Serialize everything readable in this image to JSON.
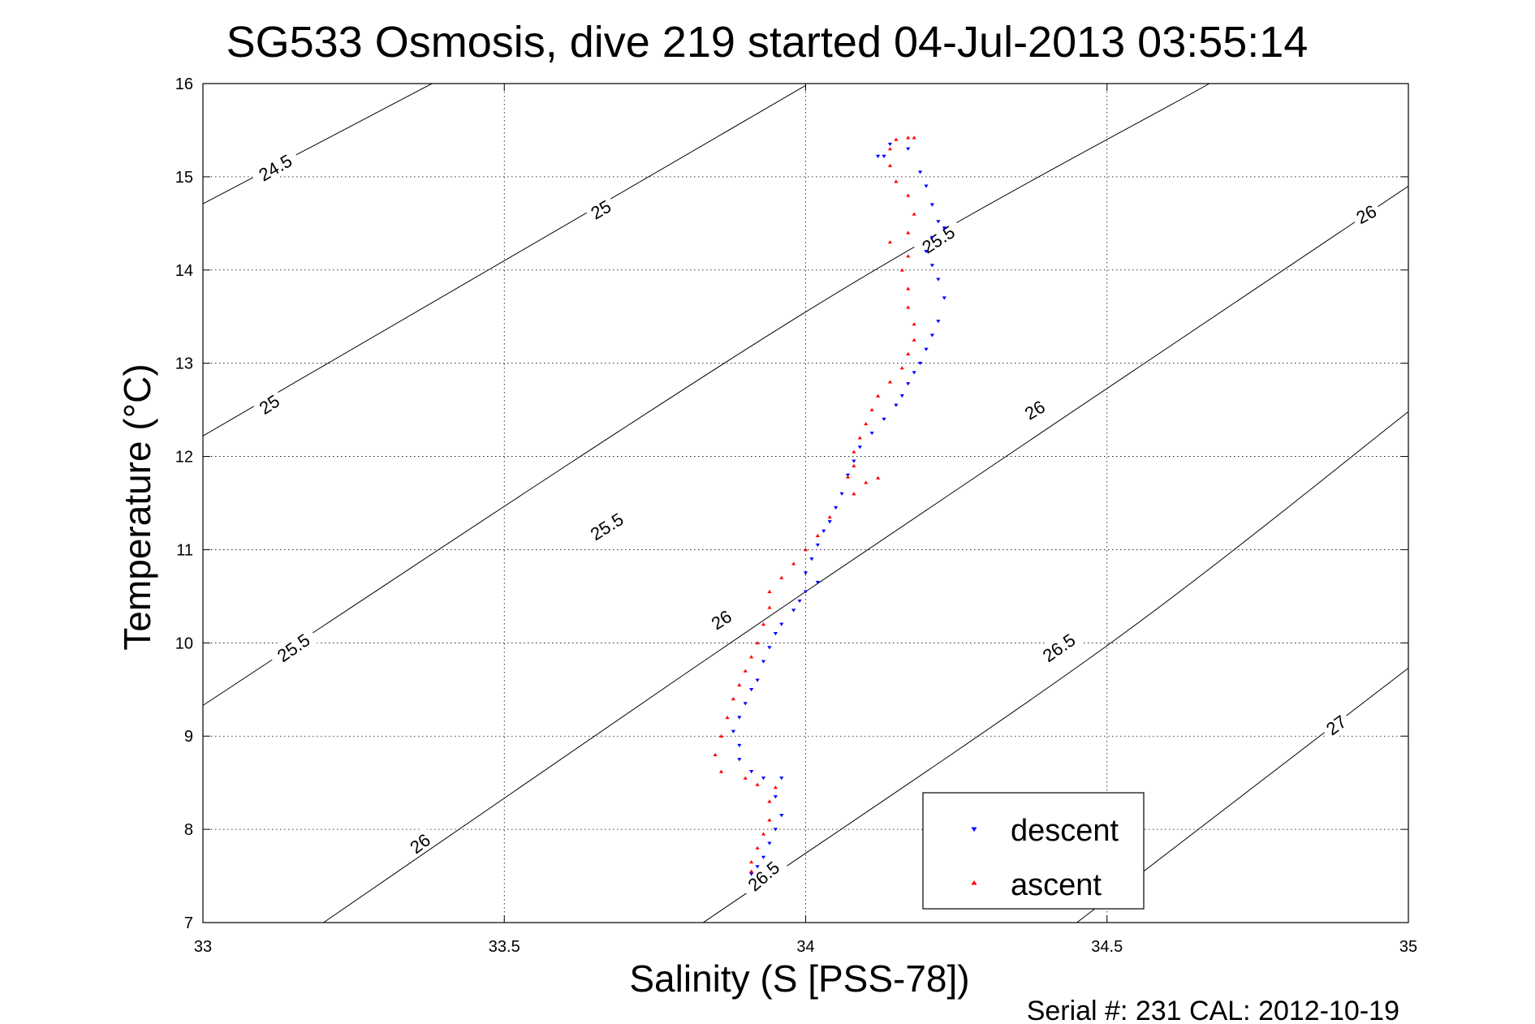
{
  "figure": {
    "footer": "Serial #: 231  CAL: 2012-10-19"
  },
  "chart_data": {
    "type": "scatter",
    "title": "SG533 Osmosis, dive 219 started 04-Jul-2013 03:55:14",
    "xlabel": "Salinity (S [PSS-78])",
    "ylabel": "Temperature (°C)",
    "xlim": [
      33,
      35
    ],
    "ylim": [
      7,
      16
    ],
    "xticks": [
      33,
      33.5,
      34,
      34.5,
      35
    ],
    "xtick_labels": [
      "33",
      "33.5",
      "34",
      "34.5",
      "35"
    ],
    "yticks": [
      7,
      8,
      9,
      10,
      11,
      12,
      13,
      14,
      15,
      16
    ],
    "ytick_labels": [
      "7",
      "8",
      "9",
      "10",
      "11",
      "12",
      "13",
      "14",
      "15",
      "16"
    ],
    "grid": true,
    "legend": {
      "placement": "bottom-right"
    },
    "density_contours": {
      "color": "#000000",
      "levels": [
        {
          "level": 24.5,
          "points": [
            [
              33.0,
              14.71
            ],
            [
              33.38,
              16.0
            ]
          ]
        },
        {
          "level": 25.0,
          "points": [
            [
              33.0,
              12.22
            ],
            [
              34.0,
              15.98
            ]
          ]
        },
        {
          "level": 25.5,
          "points": [
            [
              33.0,
              9.33
            ],
            [
              34.0,
              13.55
            ],
            [
              34.67,
              16.0
            ]
          ]
        },
        {
          "level": 26.0,
          "points": [
            [
              33.2,
              7.0
            ],
            [
              34.0,
              10.55
            ],
            [
              35.0,
              14.9
            ]
          ]
        },
        {
          "level": 26.5,
          "points": [
            [
              33.83,
              7.0
            ],
            [
              34.5,
              9.97
            ],
            [
              35.0,
              12.48
            ]
          ]
        },
        {
          "level": 27.0,
          "points": [
            [
              34.45,
              7.0
            ],
            [
              35.0,
              9.73
            ]
          ]
        }
      ],
      "labels": [
        {
          "text": "24.5",
          "x": 33.12,
          "y": 15.1,
          "angle": -30
        },
        {
          "text": "25",
          "x": 33.66,
          "y": 14.65,
          "angle": -30
        },
        {
          "text": "25",
          "x": 33.11,
          "y": 12.56,
          "angle": -33
        },
        {
          "text": "25.5",
          "x": 33.67,
          "y": 11.25,
          "angle": -32
        },
        {
          "text": "25.5",
          "x": 34.22,
          "y": 14.33,
          "angle": -33
        },
        {
          "text": "25.5",
          "x": 33.15,
          "y": 9.95,
          "angle": -35
        },
        {
          "text": "26",
          "x": 33.36,
          "y": 7.85,
          "angle": -37
        },
        {
          "text": "26",
          "x": 33.86,
          "y": 10.25,
          "angle": -33
        },
        {
          "text": "26",
          "x": 34.38,
          "y": 12.5,
          "angle": -31
        },
        {
          "text": "26",
          "x": 34.93,
          "y": 14.6,
          "angle": -28
        },
        {
          "text": "26.5",
          "x": 33.93,
          "y": 7.5,
          "angle": -41
        },
        {
          "text": "26.5",
          "x": 34.42,
          "y": 9.95,
          "angle": -35
        },
        {
          "text": "27",
          "x": 34.88,
          "y": 9.12,
          "angle": -36
        }
      ]
    },
    "series": [
      {
        "name": "descent",
        "color": "#0000ff",
        "marker": "triangle-down",
        "points": [
          [
            34.12,
            15.22
          ],
          [
            34.13,
            15.22
          ],
          [
            34.14,
            15.35
          ],
          [
            34.17,
            15.3
          ],
          [
            34.19,
            15.05
          ],
          [
            34.2,
            14.9
          ],
          [
            34.21,
            14.7
          ],
          [
            34.22,
            14.52
          ],
          [
            34.23,
            14.45
          ],
          [
            34.21,
            14.35
          ],
          [
            34.2,
            14.2
          ],
          [
            34.21,
            14.05
          ],
          [
            34.22,
            13.9
          ],
          [
            34.23,
            13.7
          ],
          [
            34.22,
            13.45
          ],
          [
            34.21,
            13.3
          ],
          [
            34.2,
            13.15
          ],
          [
            34.19,
            13.0
          ],
          [
            34.18,
            12.9
          ],
          [
            34.17,
            12.78
          ],
          [
            34.16,
            12.65
          ],
          [
            34.15,
            12.55
          ],
          [
            34.13,
            12.4
          ],
          [
            34.11,
            12.25
          ],
          [
            34.09,
            12.1
          ],
          [
            34.08,
            11.95
          ],
          [
            34.07,
            11.8
          ],
          [
            34.06,
            11.6
          ],
          [
            34.05,
            11.45
          ],
          [
            34.04,
            11.3
          ],
          [
            34.03,
            11.2
          ],
          [
            34.02,
            11.05
          ],
          [
            34.01,
            10.9
          ],
          [
            34.0,
            10.75
          ],
          [
            34.02,
            10.65
          ],
          [
            34.0,
            10.55
          ],
          [
            33.99,
            10.45
          ],
          [
            33.98,
            10.35
          ],
          [
            33.96,
            10.2
          ],
          [
            33.95,
            10.1
          ],
          [
            33.94,
            9.95
          ],
          [
            33.93,
            9.8
          ],
          [
            33.92,
            9.6
          ],
          [
            33.91,
            9.5
          ],
          [
            33.9,
            9.35
          ],
          [
            33.89,
            9.2
          ],
          [
            33.88,
            9.05
          ],
          [
            33.89,
            8.9
          ],
          [
            33.89,
            8.75
          ],
          [
            33.91,
            8.62
          ],
          [
            33.93,
            8.55
          ],
          [
            33.96,
            8.55
          ],
          [
            33.95,
            8.35
          ],
          [
            33.96,
            8.15
          ],
          [
            33.95,
            8.0
          ],
          [
            33.94,
            7.85
          ],
          [
            33.93,
            7.7
          ],
          [
            33.92,
            7.6
          ],
          [
            33.91,
            7.52
          ]
        ]
      },
      {
        "name": "ascent",
        "color": "#ff0000",
        "marker": "triangle-up",
        "points": [
          [
            34.18,
            15.42
          ],
          [
            34.17,
            15.42
          ],
          [
            34.15,
            15.4
          ],
          [
            34.14,
            15.3
          ],
          [
            34.14,
            15.12
          ],
          [
            34.15,
            14.95
          ],
          [
            34.17,
            14.8
          ],
          [
            34.18,
            14.6
          ],
          [
            34.17,
            14.4
          ],
          [
            34.14,
            14.3
          ],
          [
            34.17,
            14.15
          ],
          [
            34.16,
            14.0
          ],
          [
            34.17,
            13.8
          ],
          [
            34.17,
            13.6
          ],
          [
            34.18,
            13.42
          ],
          [
            34.18,
            13.25
          ],
          [
            34.17,
            13.1
          ],
          [
            34.16,
            12.95
          ],
          [
            34.14,
            12.8
          ],
          [
            34.12,
            12.65
          ],
          [
            34.11,
            12.5
          ],
          [
            34.1,
            12.35
          ],
          [
            34.09,
            12.2
          ],
          [
            34.08,
            12.05
          ],
          [
            34.08,
            11.9
          ],
          [
            34.07,
            11.78
          ],
          [
            34.1,
            11.72
          ],
          [
            34.12,
            11.77
          ],
          [
            34.08,
            11.6
          ],
          [
            34.04,
            11.35
          ],
          [
            34.02,
            11.15
          ],
          [
            34.0,
            11.0
          ],
          [
            33.98,
            10.85
          ],
          [
            33.96,
            10.7
          ],
          [
            33.94,
            10.55
          ],
          [
            33.94,
            10.38
          ],
          [
            33.93,
            10.2
          ],
          [
            33.92,
            10.0
          ],
          [
            33.91,
            9.85
          ],
          [
            33.9,
            9.7
          ],
          [
            33.89,
            9.55
          ],
          [
            33.88,
            9.4
          ],
          [
            33.87,
            9.2
          ],
          [
            33.86,
            9.0
          ],
          [
            33.85,
            8.8
          ],
          [
            33.86,
            8.62
          ],
          [
            33.9,
            8.55
          ],
          [
            33.92,
            8.48
          ],
          [
            33.95,
            8.45
          ],
          [
            33.94,
            8.3
          ],
          [
            33.94,
            8.1
          ],
          [
            33.93,
            7.95
          ],
          [
            33.92,
            7.8
          ],
          [
            33.91,
            7.65
          ],
          [
            33.91,
            7.55
          ]
        ]
      }
    ]
  }
}
